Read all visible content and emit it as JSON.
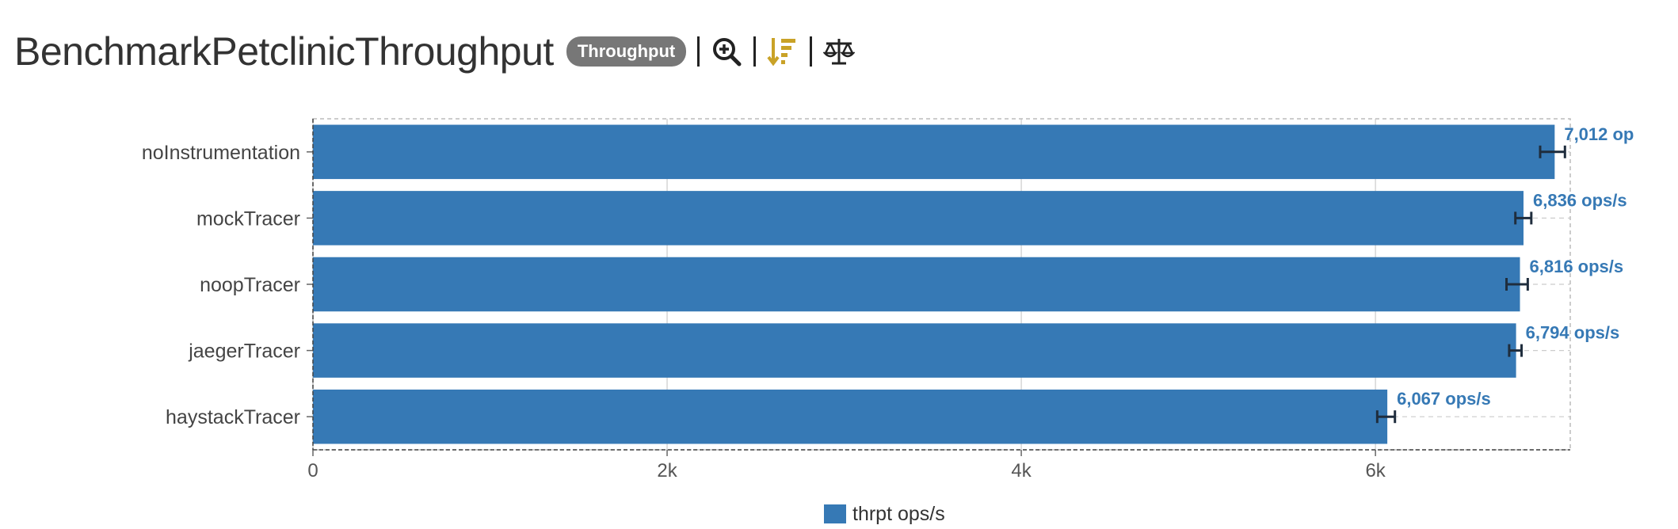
{
  "header": {
    "title": "BenchmarkPetclinicThroughput",
    "badge": "Throughput",
    "tools": [
      "zoom-in-icon",
      "sort-descending-icon",
      "balance-scale-icon"
    ]
  },
  "colors": {
    "bar": "#3679b5",
    "error_bar": "#1f2d3d",
    "data_label": "#3679b5",
    "sort_icon": "#c9a227",
    "grid": "#cccccc"
  },
  "chart_data": {
    "type": "bar",
    "orientation": "horizontal",
    "title": "BenchmarkPetclinicThroughput",
    "categories": [
      "noInstrumentation",
      "mockTracer",
      "noopTracer",
      "jaegerTracer",
      "haystackTracer"
    ],
    "series": [
      {
        "name": "thrpt ops/s",
        "values": [
          7012,
          6836,
          6816,
          6794,
          6067
        ],
        "error_low": [
          6930,
          6790,
          6740,
          6755,
          6010
        ],
        "error_high": [
          7070,
          6880,
          6860,
          6825,
          6110
        ],
        "data_labels": [
          "7,012 op",
          "6,836 ops/s",
          "6,816 ops/s",
          "6,794 ops/s",
          "6,067 ops/s"
        ]
      }
    ],
    "xticks": [
      "0",
      "2k",
      "4k",
      "6k"
    ],
    "xtick_values": [
      0,
      2000,
      4000,
      6000
    ],
    "xlim": [
      0,
      7100
    ],
    "xlabel": "",
    "ylabel": "",
    "grid": true,
    "legend_position": "bottom-center"
  },
  "legend": {
    "label": "thrpt ops/s"
  }
}
